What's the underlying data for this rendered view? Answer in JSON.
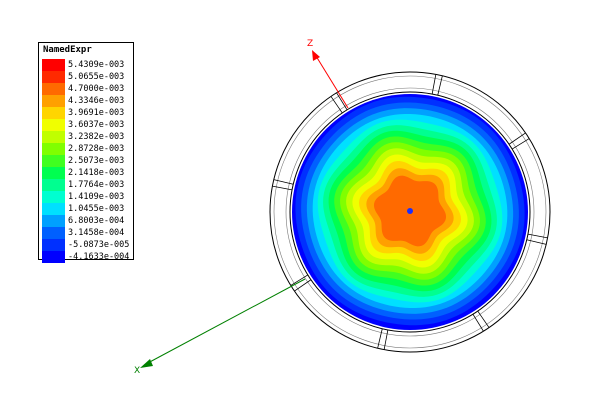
{
  "legend": {
    "title": "NamedExpr",
    "entries": [
      {
        "value": "5.4309e-003",
        "color": "#ff0000"
      },
      {
        "value": "5.0655e-003",
        "color": "#ff2a00"
      },
      {
        "value": "4.7000e-003",
        "color": "#ff6a00"
      },
      {
        "value": "4.3346e-003",
        "color": "#ffa000"
      },
      {
        "value": "3.9691e-003",
        "color": "#ffd500"
      },
      {
        "value": "3.6037e-003",
        "color": "#f0ff00"
      },
      {
        "value": "3.2382e-003",
        "color": "#c0ff00"
      },
      {
        "value": "2.8728e-003",
        "color": "#80ff00"
      },
      {
        "value": "2.5073e-003",
        "color": "#40ff20"
      },
      {
        "value": "2.1418e-003",
        "color": "#00ff50"
      },
      {
        "value": "1.7764e-003",
        "color": "#00ff90"
      },
      {
        "value": "1.4109e-003",
        "color": "#00ffd0"
      },
      {
        "value": "1.0455e-003",
        "color": "#00e0ff"
      },
      {
        "value": "6.8003e-004",
        "color": "#00a0ff"
      },
      {
        "value": "3.1458e-004",
        "color": "#0060ff"
      },
      {
        "value": "-5.0873e-005",
        "color": "#0030ff"
      },
      {
        "value": "-4.1633e-004",
        "color": "#0000ff"
      }
    ]
  },
  "axes": {
    "z_label": "Z",
    "x_label": "X",
    "z_color": "#ff0000",
    "x_color": "#008000"
  }
}
